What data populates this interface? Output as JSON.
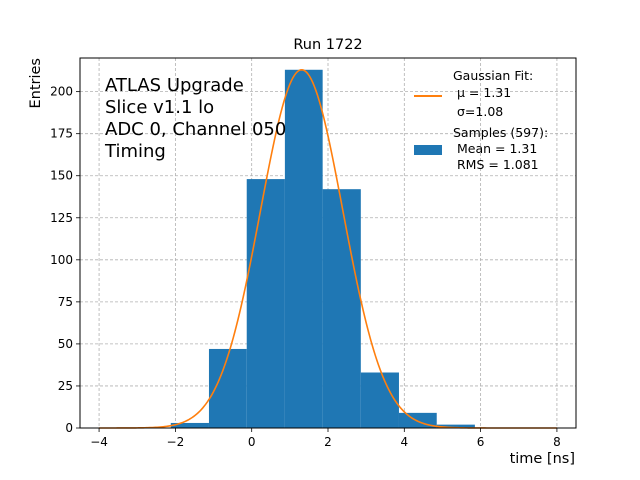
{
  "chart_data": {
    "type": "bar",
    "title": "Run 1722",
    "xlabel": "time [ns]",
    "ylabel": "Entries",
    "xlim": [
      -4.5,
      8.5
    ],
    "ylim": [
      0,
      220
    ],
    "grid": true,
    "legend_position": "top-right",
    "x_ticks": [
      -4,
      -2,
      0,
      2,
      4,
      6,
      8
    ],
    "x_tick_labels": [
      "−4",
      "−2",
      "0",
      "2",
      "4",
      "6",
      "8"
    ],
    "y_ticks": [
      0,
      25,
      50,
      75,
      100,
      125,
      150,
      175,
      200
    ],
    "y_tick_labels": [
      "0",
      "25",
      "50",
      "75",
      "100",
      "125",
      "150",
      "175",
      "200"
    ],
    "annotation_lines": [
      "ATLAS Upgrade",
      "Slice v1.1 lo",
      "ADC 0, Channel 050",
      "Timing"
    ],
    "histogram": {
      "bin_edges": [
        -2.12,
        -1.12,
        -0.13,
        0.87,
        1.86,
        2.86,
        3.86,
        4.85,
        5.85
      ],
      "counts": [
        3,
        47,
        148,
        213,
        142,
        33,
        9,
        2
      ],
      "color": "#1f77b4"
    },
    "gaussian_fit": {
      "mu": 1.31,
      "sigma": 1.08,
      "x_range": [
        -4,
        8
      ],
      "amplitude": 213,
      "color": "#ff7f0e"
    },
    "legend": {
      "fit_lines": [
        "Gaussian Fit:",
        "μ = 1.31",
        "σ=1.08"
      ],
      "sample_lines": [
        "Samples (597):",
        "Mean = 1.31",
        "RMS = 1.081"
      ]
    }
  }
}
